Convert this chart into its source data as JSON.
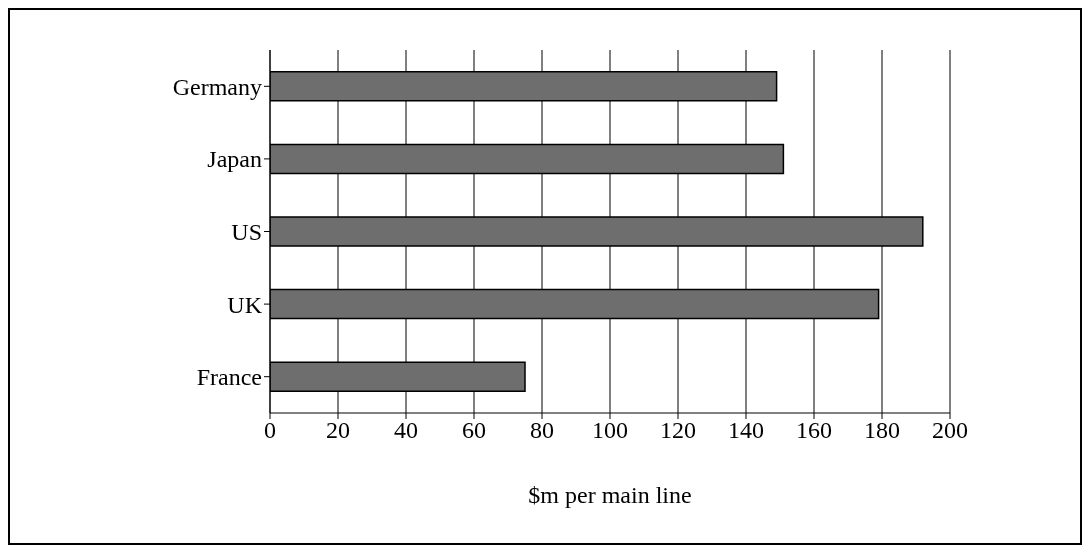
{
  "chart_data": {
    "type": "bar",
    "orientation": "horizontal",
    "categories": [
      "Germany",
      "Japan",
      "US",
      "UK",
      "France"
    ],
    "values": [
      149,
      151,
      192,
      179,
      75
    ],
    "color": "#6e6e6e",
    "xlabel": "$m per main line",
    "xlim": [
      0,
      200
    ],
    "xticks": [
      0,
      20,
      40,
      60,
      80,
      100,
      120,
      140,
      160,
      180,
      200
    ],
    "grid": "x"
  }
}
